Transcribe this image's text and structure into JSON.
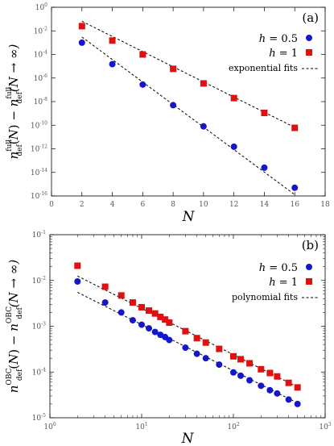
{
  "chart_data": [
    {
      "panel": "(a)",
      "type": "scatter",
      "xscale": "linear",
      "yscale": "log",
      "xlabel": "N",
      "ylabel_parts": {
        "sub": "def",
        "sup": "full",
        "rhs": "(N → ∞)"
      },
      "xlim": [
        0,
        18
      ],
      "ylim_exp": [
        -16,
        0
      ],
      "x_ticks": [
        0,
        2,
        4,
        6,
        8,
        10,
        12,
        14,
        16,
        18
      ],
      "y_tick_exps": [
        -16,
        -14,
        -12,
        -10,
        -8,
        -6,
        -4,
        -2,
        0
      ],
      "legend_position": "right",
      "series": [
        {
          "name": "h = 0.5",
          "marker": "circle",
          "color": "#1515cc",
          "x": [
            2,
            4,
            6,
            8,
            10,
            12,
            14,
            16
          ],
          "y": [
            0.001,
            1.5e-05,
            2.8e-07,
            5e-09,
            8e-11,
            1.5e-12,
            2.5e-14,
            5e-16
          ]
        },
        {
          "name": "h = 1",
          "marker": "square",
          "color": "#e01010",
          "x": [
            2,
            4,
            6,
            8,
            10,
            12,
            14,
            16
          ],
          "y": [
            0.025,
            0.0015,
            0.0001,
            6e-06,
            3.5e-07,
            2e-08,
            1.1e-09,
            6e-11
          ]
        }
      ],
      "fits": {
        "name": "exponential fits",
        "lines": [
          {
            "x": [
              2,
              16
            ],
            "y": [
              0.003,
              1.3e-16
            ]
          },
          {
            "x": [
              2,
              16
            ],
            "y": [
              0.065,
              6.5e-11
            ]
          }
        ]
      }
    },
    {
      "panel": "(b)",
      "type": "scatter",
      "xscale": "log",
      "yscale": "log",
      "xlabel": "N",
      "ylabel_parts": {
        "sub": "def",
        "sup": "OBC",
        "rhs": "(N → ∞)"
      },
      "xlim_exp": [
        0,
        3
      ],
      "ylim_exp": [
        -5,
        -1
      ],
      "x_tick_exps": [
        0,
        1,
        2,
        3
      ],
      "y_tick_exps": [
        -5,
        -4,
        -3,
        -2,
        -1
      ],
      "legend_position": "right",
      "series": [
        {
          "name": "h = 0.5",
          "marker": "circle",
          "color": "#1515cc",
          "x": [
            2,
            4,
            6,
            8,
            10,
            12,
            14,
            16,
            18,
            20,
            30,
            40,
            50,
            70,
            100,
            120,
            150,
            200,
            250,
            300,
            400,
            500
          ],
          "y": [
            0.0095,
            0.0033,
            0.002,
            0.00135,
            0.00108,
            0.0009,
            0.00075,
            0.00065,
            0.00058,
            0.0005,
            0.00034,
            0.00025,
            0.0002,
            0.000145,
            9.8e-05,
            8.3e-05,
            6.6e-05,
            5e-05,
            4e-05,
            3.4e-05,
            2.5e-05,
            2e-05
          ]
        },
        {
          "name": "h = 1",
          "marker": "square",
          "color": "#e01010",
          "x": [
            2,
            4,
            6,
            8,
            10,
            12,
            14,
            16,
            18,
            20,
            30,
            40,
            50,
            70,
            100,
            120,
            150,
            200,
            250,
            300,
            400,
            500
          ],
          "y": [
            0.021,
            0.0073,
            0.0047,
            0.0033,
            0.0026,
            0.0022,
            0.0019,
            0.0016,
            0.0014,
            0.0012,
            0.00078,
            0.00055,
            0.00044,
            0.00032,
            0.00022,
            0.00019,
            0.000155,
            0.000115,
            9.5e-05,
            8e-05,
            5.8e-05,
            4.6e-05
          ]
        }
      ],
      "fits": {
        "name": "polynomial fits",
        "lines": [
          {
            "x": [
              2,
              500
            ],
            "y": [
              0.0055,
              2.1e-05
            ]
          },
          {
            "x": [
              2,
              500
            ],
            "y": [
              0.0125,
              4.7e-05
            ]
          }
        ]
      }
    }
  ]
}
